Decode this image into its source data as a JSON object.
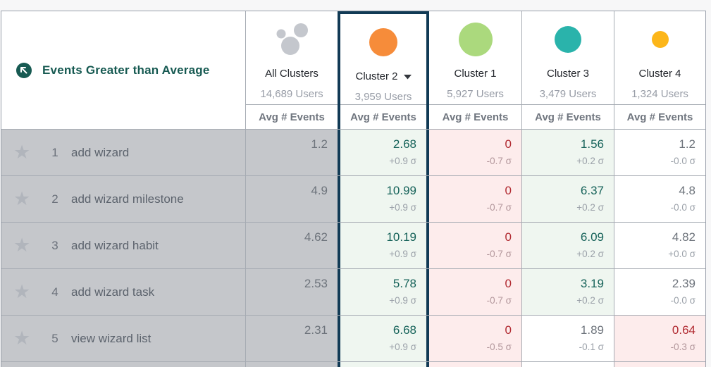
{
  "theme": {
    "highlight_navy": "#113a55",
    "title_teal": "#175a52",
    "row_gray": "#c5c7cb",
    "positive_bg": "#eff6f0",
    "positive_text": "#17635a",
    "negative_bg": "#fdecec",
    "negative_text": "#b12a31",
    "all_clusters_gray": "#c4c7cd"
  },
  "icons": {
    "star": "★"
  },
  "title": {
    "label": "Events Greater than Average"
  },
  "columns": [
    {
      "id": "all_clusters",
      "label": "All Clusters",
      "users": "14,689 Users",
      "avg_label": "Avg # Events",
      "color": "#c4c7cd",
      "selected": false
    },
    {
      "id": "cluster_2",
      "label": "Cluster 2",
      "users": "3,959 Users",
      "avg_label": "Avg # Events",
      "color": "#f68c3a",
      "selected": true
    },
    {
      "id": "cluster_1",
      "label": "Cluster 1",
      "users": "5,927 Users",
      "avg_label": "Avg # Events",
      "color": "#abd97d",
      "selected": false
    },
    {
      "id": "cluster_3",
      "label": "Cluster 3",
      "users": "3,479 Users",
      "avg_label": "Avg # Events",
      "color": "#2ab3ab",
      "selected": false
    },
    {
      "id": "cluster_4",
      "label": "Cluster 4",
      "users": "1,324 Users",
      "avg_label": "Avg # Events",
      "color": "#fcb61a",
      "selected": false
    }
  ],
  "rows": [
    {
      "rank": "1",
      "event": "add wizard",
      "all_avg": "1.2",
      "cells": [
        {
          "value": "2.68",
          "sigma": "+0.9 σ",
          "state": "above"
        },
        {
          "value": "0",
          "sigma": "-0.7 σ",
          "state": "below"
        },
        {
          "value": "1.56",
          "sigma": "+0.2 σ",
          "state": "above"
        },
        {
          "value": "1.2",
          "sigma": "-0.0 σ",
          "state": "neutral"
        }
      ]
    },
    {
      "rank": "2",
      "event": "add wizard milestone",
      "all_avg": "4.9",
      "cells": [
        {
          "value": "10.99",
          "sigma": "+0.9 σ",
          "state": "above"
        },
        {
          "value": "0",
          "sigma": "-0.7 σ",
          "state": "below"
        },
        {
          "value": "6.37",
          "sigma": "+0.2 σ",
          "state": "above"
        },
        {
          "value": "4.8",
          "sigma": "-0.0 σ",
          "state": "neutral"
        }
      ]
    },
    {
      "rank": "3",
      "event": "add wizard habit",
      "all_avg": "4.62",
      "cells": [
        {
          "value": "10.19",
          "sigma": "+0.9 σ",
          "state": "above"
        },
        {
          "value": "0",
          "sigma": "-0.7 σ",
          "state": "below"
        },
        {
          "value": "6.09",
          "sigma": "+0.2 σ",
          "state": "above"
        },
        {
          "value": "4.82",
          "sigma": "+0.0 σ",
          "state": "neutral"
        }
      ]
    },
    {
      "rank": "4",
      "event": "add wizard task",
      "all_avg": "2.53",
      "cells": [
        {
          "value": "5.78",
          "sigma": "+0.9 σ",
          "state": "above"
        },
        {
          "value": "0",
          "sigma": "-0.7 σ",
          "state": "below"
        },
        {
          "value": "3.19",
          "sigma": "+0.2 σ",
          "state": "above"
        },
        {
          "value": "2.39",
          "sigma": "-0.0 σ",
          "state": "neutral"
        }
      ]
    },
    {
      "rank": "5",
      "event": "view wizard list",
      "all_avg": "2.31",
      "cells": [
        {
          "value": "6.68",
          "sigma": "+0.9 σ",
          "state": "above"
        },
        {
          "value": "0",
          "sigma": "-0.5 σ",
          "state": "below"
        },
        {
          "value": "1.89",
          "sigma": "-0.1 σ",
          "state": "neutral"
        },
        {
          "value": "0.64",
          "sigma": "-0.3 σ",
          "state": "below"
        }
      ]
    }
  ]
}
